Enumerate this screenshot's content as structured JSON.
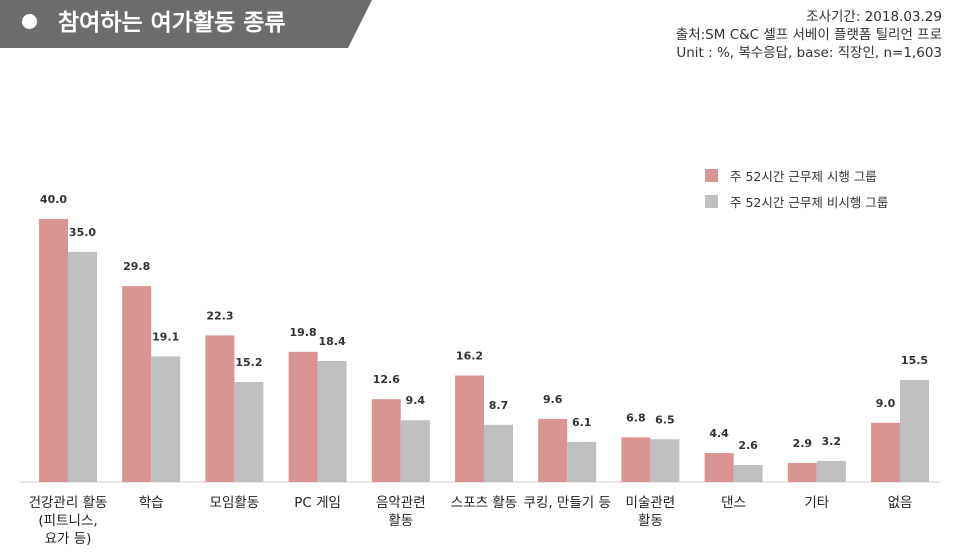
{
  "header": {
    "title": "참여하는 여가활동 종류",
    "survey_period": "조사기간: 2018.03.29",
    "source": "출처:SM C&C 셀프 서베이 플랫폼 틸리언 프로",
    "unit_note": "Unit : %, 복수응답, base: 직장인, n=1,603"
  },
  "colors": {
    "title_bg": "#6d6d6d",
    "series_1": "#d99594",
    "series_2": "#bfbfbf"
  },
  "chart_data": {
    "type": "bar",
    "categories": [
      "건강관리 활동 (피트니스, 요가 등)",
      "학습",
      "모임활동",
      "PC 게임",
      "음악관련 활동",
      "스포츠 활동",
      "쿠킹, 만들기 등",
      "미술관련 활동",
      "댄스",
      "기타",
      "없음"
    ],
    "category_lines": [
      [
        "건강관리 활동",
        "(피트니스,",
        "요가 등)"
      ],
      [
        "학습"
      ],
      [
        "모임활동"
      ],
      [
        "PC 게임"
      ],
      [
        "음악관련",
        "활동"
      ],
      [
        "스포츠 활동"
      ],
      [
        "쿠킹, 만들기 등"
      ],
      [
        "미술관련",
        "활동"
      ],
      [
        "댄스"
      ],
      [
        "기타"
      ],
      [
        "없음"
      ]
    ],
    "series": [
      {
        "name": "주 52시간 근무제 시행 그룹",
        "values": [
          40.0,
          29.8,
          22.3,
          19.8,
          12.6,
          16.2,
          9.6,
          6.8,
          4.4,
          2.9,
          9.0
        ]
      },
      {
        "name": "주 52시간 근무제 비시행 그룹",
        "values": [
          35.0,
          19.1,
          15.2,
          18.4,
          9.4,
          8.7,
          6.1,
          6.5,
          2.6,
          3.2,
          15.5
        ]
      }
    ],
    "value_labels": [
      [
        "40.0",
        "29.8",
        "22.3",
        "19.8",
        "12.6",
        "16.2",
        "9.6",
        "6.8",
        "4.4",
        "2.9",
        "9.0"
      ],
      [
        "35.0",
        "19.1",
        "15.2",
        "18.4",
        "9.4",
        "8.7",
        "6.1",
        "6.5",
        "2.6",
        "3.2",
        "15.5"
      ]
    ],
    "ylim": [
      0,
      40
    ],
    "legend_position": "top-right",
    "grid": false
  }
}
